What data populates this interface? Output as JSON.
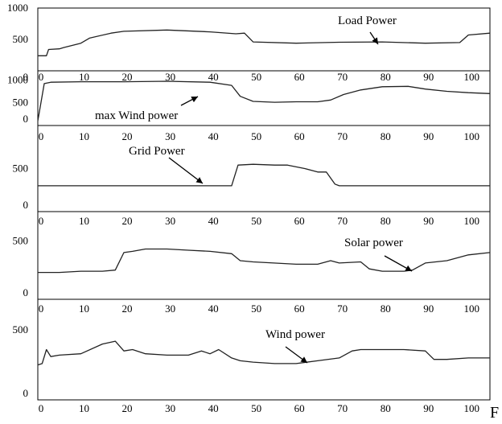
{
  "chart_data": [
    {
      "type": "line",
      "xlim": [
        0,
        105
      ],
      "ylim": [
        0,
        1000
      ],
      "yticks": [
        "1000",
        "500",
        "0"
      ],
      "yticks_values": [
        1000,
        500,
        0
      ],
      "xticks": [
        "0",
        "10",
        "20",
        "30",
        "40",
        "50",
        "60",
        "70",
        "80",
        "90",
        "100"
      ],
      "xticks_values": [
        0,
        10,
        20,
        30,
        40,
        50,
        60,
        70,
        80,
        90,
        100
      ],
      "series": [
        {
          "name": "Load Power",
          "x": [
            0,
            2,
            2.5,
            5,
            6,
            10,
            12,
            17,
            20,
            30,
            40,
            46,
            48,
            50,
            60,
            70,
            80,
            90,
            98,
            100,
            105
          ],
          "y": [
            240,
            240,
            340,
            350,
            370,
            440,
            520,
            600,
            630,
            650,
            620,
            590,
            600,
            460,
            440,
            455,
            460,
            440,
            450,
            570,
            600
          ]
        }
      ]
    },
    {
      "type": "line",
      "xlim": [
        0,
        105
      ],
      "ylim": [
        0,
        1200
      ],
      "yticks": [
        "1000",
        "500",
        "0"
      ],
      "yticks_values": [
        1000,
        500,
        0
      ],
      "xticks": [
        "0",
        "10",
        "20",
        "30",
        "40",
        "50",
        "60",
        "70",
        "80",
        "90",
        "100"
      ],
      "xticks_values": [
        0,
        10,
        20,
        30,
        40,
        50,
        60,
        70,
        80,
        90,
        100
      ],
      "series": [
        {
          "name": "max Wind power",
          "x": [
            0,
            1.5,
            3,
            10,
            20,
            30,
            40,
            45,
            47,
            50,
            55,
            60,
            65,
            68,
            71,
            75,
            80,
            86,
            90,
            95,
            100,
            105
          ],
          "y": [
            100,
            920,
            950,
            960,
            960,
            970,
            950,
            880,
            640,
            530,
            510,
            520,
            520,
            560,
            680,
            780,
            850,
            860,
            800,
            750,
            720,
            700
          ]
        }
      ]
    },
    {
      "type": "line",
      "xlim": [
        0,
        105
      ],
      "ylim": [
        0,
        1000
      ],
      "yticks": [
        "500",
        "0"
      ],
      "yticks_values": [
        500,
        0
      ],
      "xticks": [
        "0",
        "10",
        "20",
        "30",
        "40",
        "50",
        "60",
        "70",
        "80",
        "90",
        "100"
      ],
      "xticks_values": [
        0,
        10,
        20,
        30,
        40,
        50,
        60,
        70,
        80,
        90,
        100
      ],
      "series": [
        {
          "name": "Grid Power",
          "x": [
            0,
            45,
            46.5,
            50,
            55,
            58,
            62,
            65,
            67,
            69,
            70,
            105
          ],
          "y": [
            300,
            300,
            540,
            550,
            540,
            540,
            500,
            460,
            460,
            320,
            300,
            300
          ]
        }
      ]
    },
    {
      "type": "line",
      "xlim": [
        0,
        105
      ],
      "ylim": [
        0,
        750
      ],
      "yticks": [
        "500",
        "0"
      ],
      "yticks_values": [
        500,
        0
      ],
      "xticks": [
        "0",
        "10",
        "20",
        "30",
        "40",
        "50",
        "60",
        "70",
        "80",
        "90",
        "100"
      ],
      "xticks_values": [
        0,
        10,
        20,
        30,
        40,
        50,
        60,
        70,
        80,
        90,
        100
      ],
      "series": [
        {
          "name": "Solar power",
          "x": [
            0,
            5,
            10,
            15,
            18,
            20,
            22,
            25,
            30,
            35,
            40,
            45,
            47,
            50,
            60,
            65,
            68,
            70,
            75,
            77,
            80,
            85,
            87,
            90,
            95,
            100,
            105
          ],
          "y": [
            230,
            230,
            240,
            240,
            250,
            400,
            410,
            430,
            430,
            420,
            410,
            390,
            330,
            320,
            300,
            300,
            330,
            310,
            320,
            260,
            240,
            240,
            250,
            310,
            330,
            380,
            400
          ]
        }
      ]
    },
    {
      "type": "line",
      "xlim": [
        0,
        105
      ],
      "ylim": [
        0,
        720
      ],
      "yticks": [
        "500",
        "0"
      ],
      "yticks_values": [
        500,
        0
      ],
      "xticks": [
        "0",
        "10",
        "20",
        "30",
        "40",
        "50",
        "60",
        "70",
        "80",
        "90",
        "100"
      ],
      "xticks_values": [
        0,
        10,
        20,
        30,
        40,
        50,
        60,
        70,
        80,
        90,
        100
      ],
      "series": [
        {
          "name": "Wind power",
          "x": [
            0,
            1,
            2,
            3,
            5,
            10,
            15,
            18,
            20,
            22,
            25,
            30,
            35,
            38,
            40,
            42,
            45,
            47,
            50,
            55,
            60,
            65,
            70,
            73,
            75,
            80,
            85,
            90,
            92,
            95,
            100,
            105
          ],
          "y": [
            250,
            260,
            360,
            310,
            320,
            330,
            400,
            420,
            350,
            360,
            330,
            320,
            320,
            350,
            330,
            360,
            300,
            280,
            270,
            260,
            260,
            280,
            300,
            350,
            360,
            360,
            360,
            350,
            290,
            290,
            300,
            300
          ]
        }
      ]
    }
  ],
  "annotations": {
    "load_power": "Load Power",
    "max_wind_power": "max Wind power",
    "grid_power": "Grid Power",
    "solar_power": "Solar power",
    "wind_power": "Wind  power"
  },
  "trailing_char": "F"
}
